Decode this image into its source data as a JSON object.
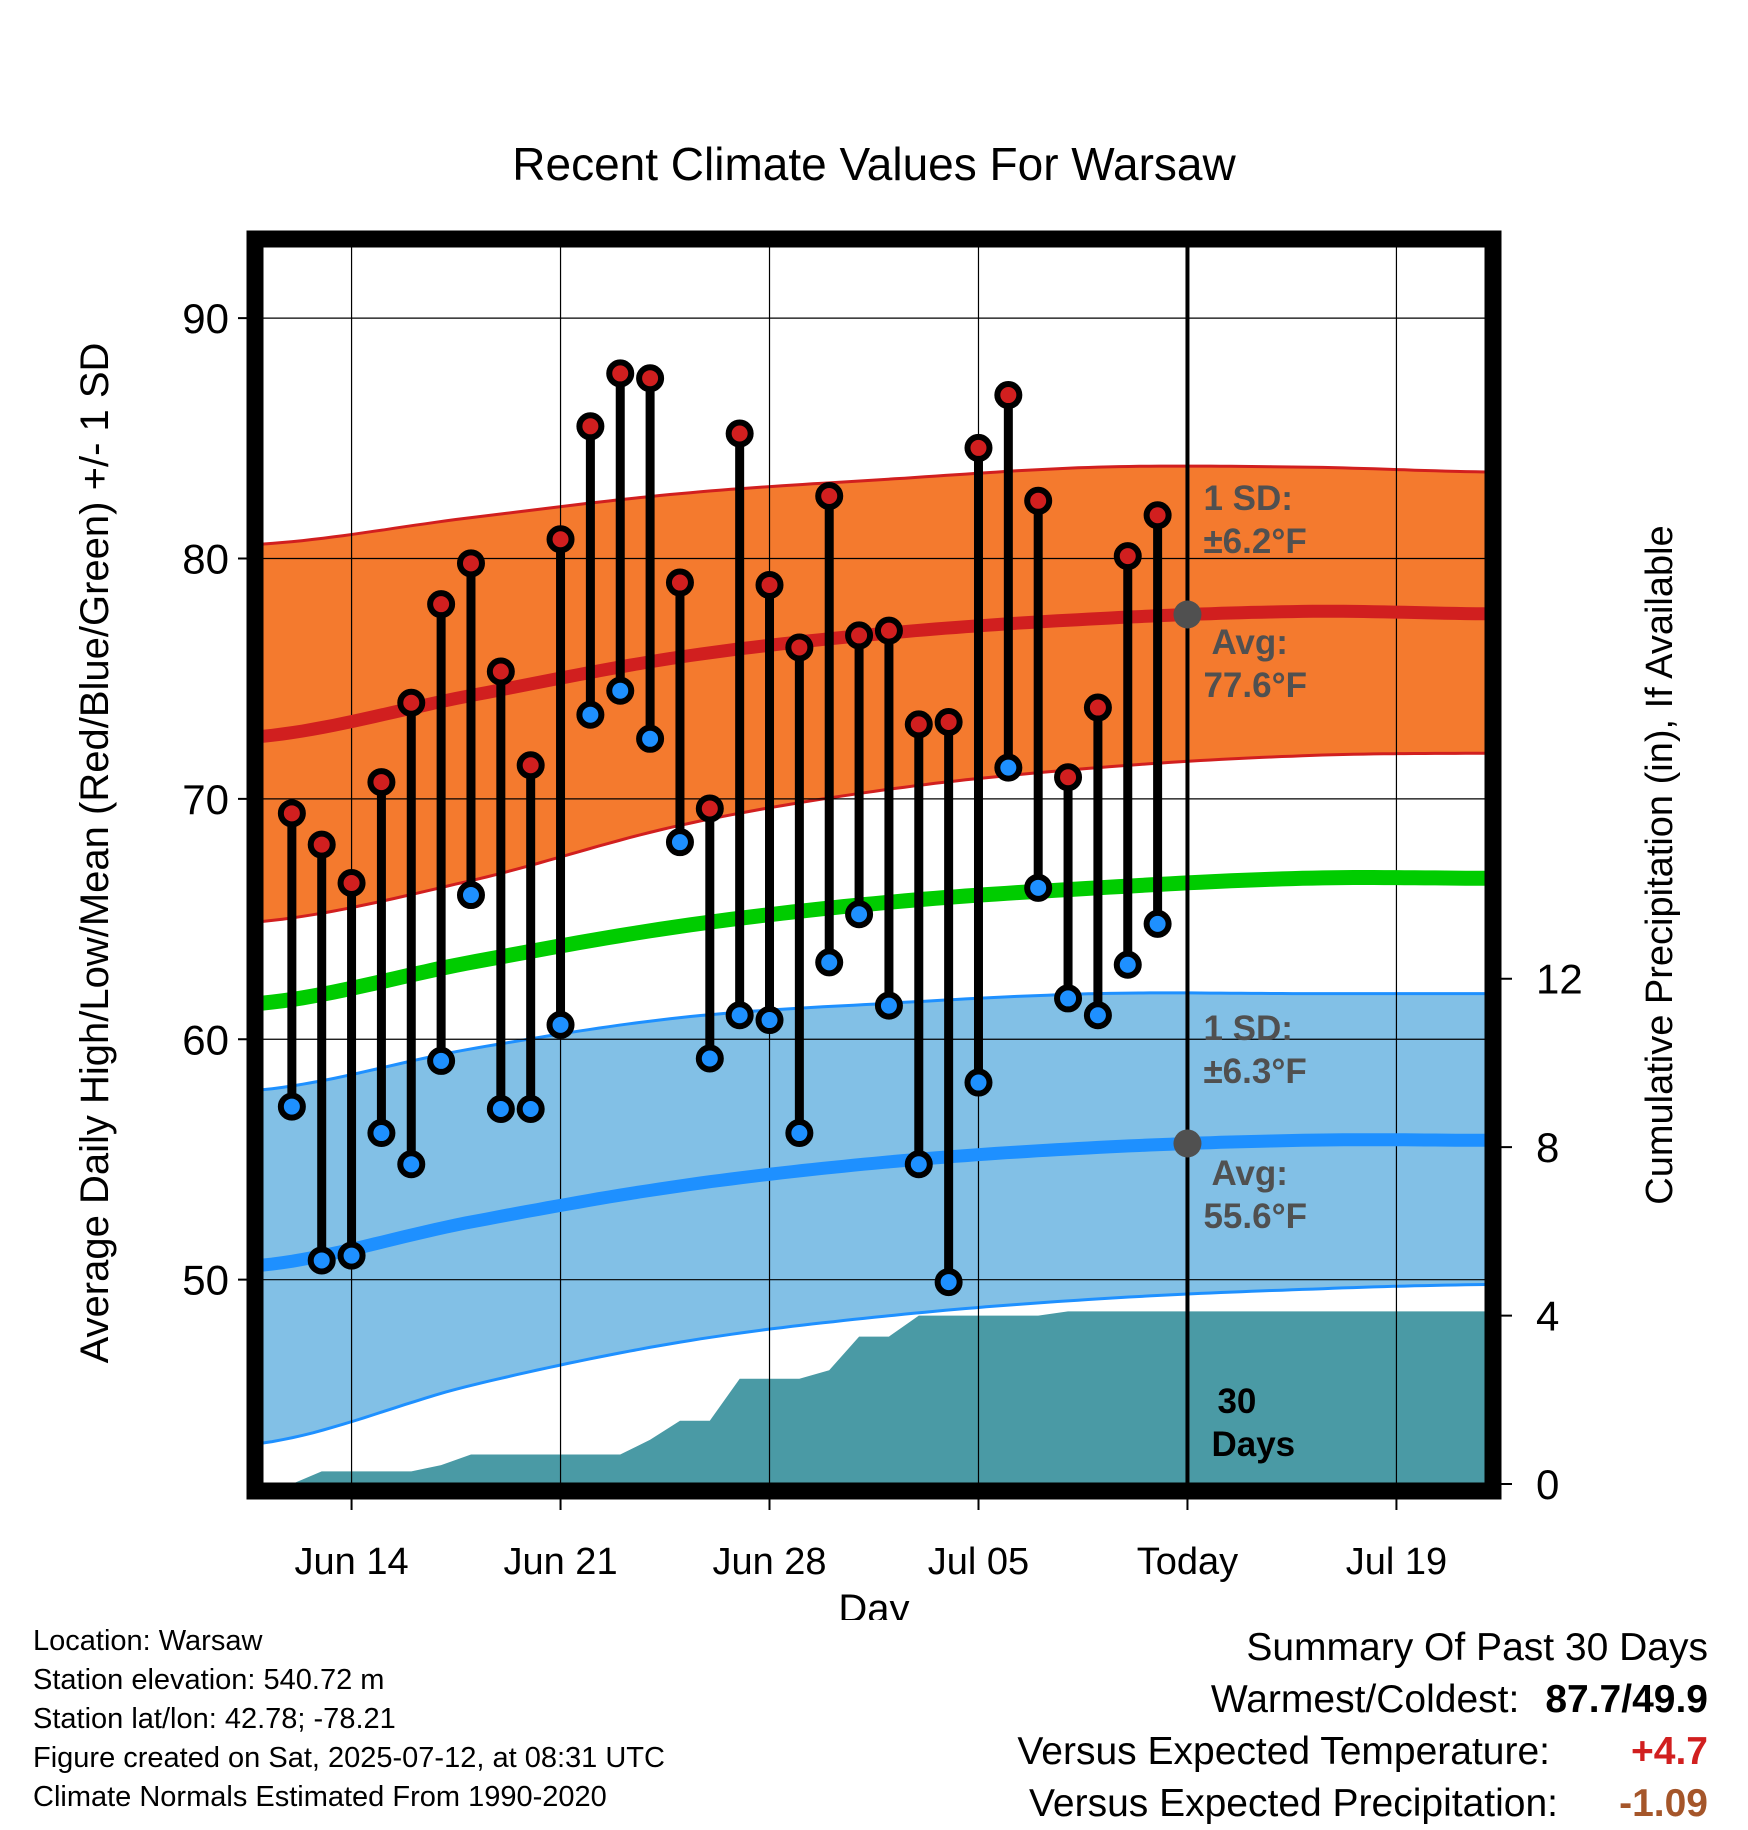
{
  "chart_data": {
    "type": "line",
    "title": "Recent Climate Values For Warsaw",
    "xlabel": "Day",
    "ylabel": "Average Daily High/Low/Mean (Red/Blue/Green) +/- 1 SD",
    "y2label": "Cumulative Precipitation (in), If Available",
    "x_ticks": [
      "Jun 14",
      "Jun 21",
      "Jun 28",
      "Jul 05",
      "Today",
      "Jul 19"
    ],
    "ylim": [
      41.5,
      93
    ],
    "yticks": [
      50,
      60,
      70,
      80,
      90
    ],
    "y2lim": [
      0,
      29.4
    ],
    "y2ticks": [
      0,
      4,
      8,
      12
    ],
    "xlim": [
      "Jun 11",
      "Jul 22"
    ],
    "grid": true,
    "today": "Jul 12",
    "days": [
      "Jun 12",
      "Jun 13",
      "Jun 14",
      "Jun 15",
      "Jun 16",
      "Jun 17",
      "Jun 18",
      "Jun 19",
      "Jun 20",
      "Jun 21",
      "Jun 22",
      "Jun 23",
      "Jun 24",
      "Jun 25",
      "Jun 26",
      "Jun 27",
      "Jun 28",
      "Jun 29",
      "Jun 30",
      "Jul 01",
      "Jul 02",
      "Jul 03",
      "Jul 04",
      "Jul 05",
      "Jul 06",
      "Jul 07",
      "Jul 08",
      "Jul 09",
      "Jul 10",
      "Jul 11"
    ],
    "series": [
      {
        "name": "High",
        "values": [
          69.4,
          68.1,
          66.5,
          70.7,
          74.0,
          78.1,
          79.8,
          75.3,
          71.4,
          80.8,
          85.5,
          87.7,
          87.5,
          79.0,
          69.6,
          85.2,
          78.9,
          76.3,
          82.6,
          76.8,
          77.0,
          73.1,
          73.2,
          84.6,
          86.8,
          82.4,
          70.9,
          73.8,
          80.1,
          81.8
        ]
      },
      {
        "name": "Low",
        "values": [
          57.2,
          50.8,
          51.0,
          56.1,
          54.8,
          59.1,
          66.0,
          57.1,
          57.1,
          60.6,
          73.5,
          74.5,
          72.5,
          68.2,
          59.2,
          61.0,
          60.8,
          56.1,
          63.2,
          65.2,
          61.4,
          54.8,
          49.9,
          58.2,
          71.3,
          66.3,
          61.7,
          61.0,
          63.1,
          64.8
        ]
      }
    ],
    "normals": {
      "days": [
        "Jun 11",
        "Jun 18",
        "Jun 25",
        "Jul 02",
        "Jul 09",
        "Jul 16",
        "Jul 22"
      ],
      "high_avg": [
        72.6,
        74.3,
        75.9,
        76.9,
        77.5,
        77.8,
        77.7
      ],
      "high_upper": [
        80.6,
        81.7,
        82.7,
        83.3,
        83.8,
        83.8,
        83.6
      ],
      "high_lower": [
        64.9,
        66.6,
        68.9,
        70.4,
        71.3,
        71.8,
        71.9
      ],
      "mean": [
        61.5,
        63.2,
        64.7,
        65.7,
        66.3,
        66.7,
        66.7
      ],
      "low_avg": [
        50.6,
        52.4,
        53.9,
        54.9,
        55.5,
        55.8,
        55.8
      ],
      "low_upper": [
        57.9,
        59.6,
        60.9,
        61.5,
        61.9,
        61.9,
        61.9
      ],
      "low_lower": [
        43.2,
        45.6,
        47.4,
        48.5,
        49.2,
        49.6,
        49.8
      ]
    },
    "precip_cumulative": {
      "x": [
        "Jun 12",
        "Jun 13",
        "Jun 16",
        "Jun 17",
        "Jun 18",
        "Jun 19",
        "Jun 23",
        "Jun 24",
        "Jun 25",
        "Jun 26",
        "Jun 27",
        "Jun 28",
        "Jun 29",
        "Jun 30",
        "Jul 01",
        "Jul 02",
        "Jul 03",
        "Jul 04",
        "Jul 07",
        "Jul 08",
        "Jul 22"
      ],
      "values": [
        0.0,
        0.3,
        0.3,
        0.45,
        0.7,
        0.7,
        0.7,
        1.05,
        1.5,
        1.5,
        2.5,
        2.5,
        2.5,
        2.7,
        3.5,
        3.5,
        4.0,
        4.0,
        4.0,
        4.1,
        4.1
      ]
    },
    "annotations": {
      "high_sd_label": "1 SD:",
      "high_sd_value": "±6.2°F",
      "high_avg_label": "Avg:",
      "high_avg_value": "77.6°F",
      "low_sd_label": "1 SD:",
      "low_sd_value": "±6.3°F",
      "low_avg_label": "Avg:",
      "low_avg_value": "55.6°F",
      "days_count": "30",
      "days_word": "Days"
    },
    "colors": {
      "high_band": "#f47a2e",
      "high_line": "#d11f1f",
      "low_band": "#82c0e6",
      "low_line": "#1e90ff",
      "mean_line": "#00cc00",
      "precip": "#4a9aa5",
      "high_dot": "#d11f1f",
      "low_dot": "#1e90ff",
      "annotation": "#505050"
    }
  },
  "info": {
    "location": "Location: Warsaw",
    "elevation": "Station elevation: 540.72 m",
    "latlon": "Station lat/lon: 42.78; -78.21",
    "created": "Figure created on Sat, 2025-07-12, at 08:31 UTC",
    "normals": "Climate Normals Estimated From 1990-2020"
  },
  "summary": {
    "title": "Summary Of Past 30 Days",
    "warmest_label": "Warmest/Coldest:",
    "warmest_value": "87.7/49.9",
    "temp_label": "Versus Expected Temperature:",
    "temp_value": "+4.7",
    "precip_label": "Versus Expected Precipitation:",
    "precip_value": "-1.09"
  }
}
